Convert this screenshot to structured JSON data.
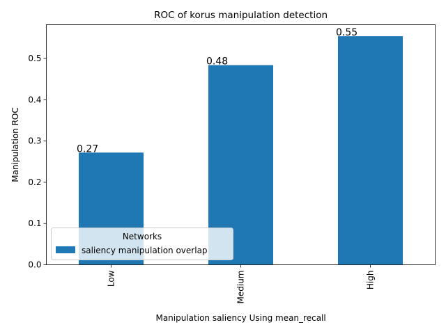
{
  "chart_data": {
    "type": "bar",
    "title": "ROC of korus manipulation detection",
    "xlabel": "Manipulation saliency Using mean_recall",
    "ylabel": "Manipulation ROC",
    "categories": [
      "Low",
      "Medium",
      "High"
    ],
    "series": [
      {
        "name": "saliency manipulation overlap",
        "values": [
          0.272,
          0.484,
          0.554
        ]
      }
    ],
    "data_labels": [
      "0.27",
      "0.48",
      "0.55"
    ],
    "ylim": [
      0,
      0.582
    ],
    "yticks": [
      0.0,
      0.1,
      0.2,
      0.3,
      0.4,
      0.5
    ],
    "ytick_labels": [
      "0.0",
      "0.1",
      "0.2",
      "0.3",
      "0.4",
      "0.5"
    ],
    "grid": false,
    "legend": {
      "title": "Networks",
      "placement": "lower-left"
    },
    "colors": {
      "bar": "#1f77b4"
    }
  }
}
